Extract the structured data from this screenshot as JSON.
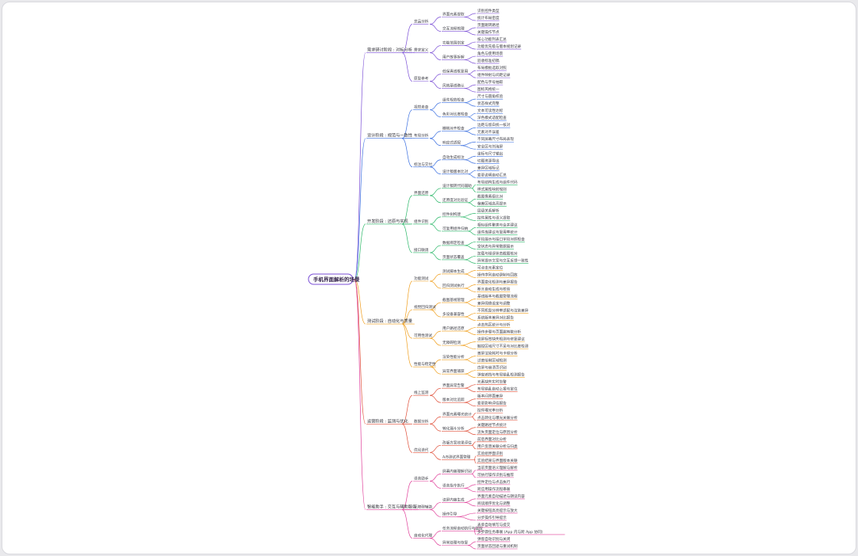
{
  "root": {
    "label": "手机界面解析的场景"
  },
  "colors": [
    "#7b4fd6",
    "#3a6fe0",
    "#2db86a",
    "#f0a020",
    "#e0503a",
    "#e0409a"
  ],
  "branches": [
    {
      "label": "需求研讨阶段 : 对标分析",
      "children": [
        {
          "label": "竞品分析",
          "children": [
            {
              "label": "界面元素提取",
              "children": [
                "识别控件类型",
                "统计布局密度"
              ]
            },
            {
              "label": "交互流程梳理",
              "children": [
                "页面跳转路径",
                "关键操作节点"
              ]
            }
          ]
        },
        {
          "label": "需求定义",
          "children": [
            {
              "label": "功能范围划定",
              "children": [
                "核心功能列表汇总",
                "功能优先级与版本规划记录"
              ]
            },
            {
              "label": "用户故事拆解",
              "children": [
                "角色与使用场景",
                "验收标准初稿"
              ]
            }
          ]
        },
        {
          "label": "原型参考",
          "children": [
            {
              "label": "低保真线框复用",
              "children": [
                "布局模板选取对照",
                "组件映射与间距记录"
              ]
            },
            {
              "label": "风格基线确认",
              "children": [
                "配色与字号抽取",
                "图标风格统一"
              ]
            }
          ]
        }
      ]
    },
    {
      "label": "设计阶段 : 规范与一致性",
      "children": [
        {
          "label": "视觉走查",
          "children": [
            {
              "label": "组件规范检查",
              "children": [
                "尺寸与圆角校验",
                "状态样式完整"
              ]
            },
            {
              "label": "色彩对比度检查",
              "children": [
                "文本可读性达标",
                "深色模式适配检查"
              ]
            }
          ]
        },
        {
          "label": "布局分析",
          "children": [
            {
              "label": "栅格对齐检查",
              "children": [
                "边距与留白统一核对",
                "元素对齐误差"
              ]
            },
            {
              "label": "响应式适配",
              "children": [
                "不同屏幕尺寸布局表现",
                "安全区与刘海屏"
              ]
            }
          ]
        },
        {
          "label": "标注与交付",
          "children": [
            {
              "label": "自动生成标注",
              "children": [
                "坐标与尺寸输出",
                "切图资源导出"
              ]
            },
            {
              "label": "设计稿版本比对",
              "children": [
                "差异区域标记",
                "变更说明自动汇总"
              ]
            }
          ]
        }
      ]
    },
    {
      "label": "开发阶段 : 还原与实现",
      "children": [
        {
          "label": "界面还原",
          "children": [
            {
              "label": "设计稿转代码辅助",
              "children": [
                "布局结构生成与组件代码",
                "样式属性映射规则"
              ]
            },
            {
              "label": "还原度对比验证",
              "children": [
                "截图像素级比对",
                "偏差区域高亮提示"
              ]
            }
          ]
        },
        {
          "label": "组件识别",
          "children": [
            {
              "label": "控件树构建",
              "children": [
                "层级关系解析",
                "控件属性与语义提取"
              ]
            },
            {
              "label": "可复用组件归纳",
              "children": [
                "相似组件聚类与合并建议",
                "组件库建议与复用率统计"
              ]
            }
          ]
        },
        {
          "label": "接口联调",
          "children": [
            {
              "label": "数据绑定检查",
              "children": [
                "字段展示与接口字段对照检查",
                "空状态与异常数据展示"
              ]
            },
            {
              "label": "页面状态覆盖",
              "children": [
                "加载与错误状态截图核对",
                "异常提示文案与交互反馈一致性"
              ]
            }
          ]
        }
      ]
    },
    {
      "label": "测试阶段 : 自动化与质量",
      "children": [
        {
          "label": "功能测试",
          "children": [
            {
              "label": "测试脚本生成",
              "children": [
                "可点击元素定位",
                "操作序列自动录制与回放"
              ]
            },
            {
              "label": "回归测试执行",
              "children": [
                "界面变化检测与差异报告",
                "断言自动生成与校验"
              ]
            }
          ]
        },
        {
          "label": "视觉回归测试",
          "children": [
            {
              "label": "截图基线管理",
              "children": [
                "基线版本与截图管理流程",
                "差异阈值设定与调整"
              ]
            },
            {
              "label": "多设备兼容性",
              "children": [
                "不同机型分辨率适配与渲染差异",
                "系统版本差异对比报告"
              ]
            }
          ]
        },
        {
          "label": "可用性测试",
          "children": [
            {
              "label": "用户路径还原",
              "children": [
                "点击热区统计与分析",
                "操作步骤与页面跳转数分析"
              ]
            },
            {
              "label": "无障碍检测",
              "children": [
                "读屏标签缺失检测与修复建议",
                "触控区域尺寸不足与对比度检测"
              ]
            }
          ]
        },
        {
          "label": "性能与稳定性",
          "children": [
            {
              "label": "渲染性能分析",
              "children": [
                "首屏渲染耗时与卡顿分析",
                "过度绘制区域检测"
              ]
            },
            {
              "label": "异常界面捕获",
              "children": [
                "白屏与崩溃页识别",
                "弹窗遮挡与布局错乱检测报告"
              ]
            }
          ]
        }
      ]
    },
    {
      "label": "运营阶段 : 监测与优化",
      "children": [
        {
          "label": "线上监测",
          "children": [
            {
              "label": "界面异常告警",
              "children": [
                "元素缺失实时告警",
                "布局错乱自动上报与定位"
              ]
            },
            {
              "label": "版本对比追踪",
              "children": [
                "版本间界面差异",
                "变更影响评估报告"
              ]
            }
          ]
        },
        {
          "label": "数据分析",
          "children": [
            {
              "label": "界面元素曝光统计",
              "children": [
                "控件曝光率分析",
                "点击转化与曝光关联分析"
              ]
            },
            {
              "label": "转化漏斗分析",
              "children": [
                "关键路径节点统计",
                "流失页面定位与原因分析"
              ]
            }
          ]
        },
        {
          "label": "优化迭代",
          "children": [
            {
              "label": "改版方案效果评估",
              "children": [
                "前后界面对比分析",
                "用户反馈关联分析与归类"
              ]
            },
            {
              "label": "A/B测试界面管理",
              "children": [
                "实验组界面识别",
                "实验结果与界面版本关联"
              ]
            }
          ]
        }
      ]
    },
    {
      "label": "智能助手 : 交互与辅助服务",
      "children": [
        {
          "label": "语音助手",
          "children": [
            {
              "label": "屏幕内容理解识别",
              "children": [
                "当前页面语义理解与解析",
                "可执行操作识别与推荐"
              ]
            },
            {
              "label": "语音指令执行",
              "children": [
                "控件定位与点击执行",
                "跨应用操作流程串联"
              ]
            }
          ]
        },
        {
          "label": "无障碍辅助",
          "children": [
            {
              "label": "读屏内容生成",
              "children": [
                "界面元素自动描述与朗读内容",
                "阅读顺序优化与调整"
              ]
            },
            {
              "label": "操作引导",
              "children": [
                "关键按钮高亮提示与放大",
                "分步操作引导提示"
              ]
            }
          ]
        },
        {
          "label": "自动化代理",
          "children": [
            {
              "label": "任务流程自动执行与监控",
              "children": [
                "表单自动填写与提交",
                "多步骤任务串联 (App 内与跨 App 协同)"
              ]
            },
            {
              "label": "异常处理与恢复",
              "children": [
                "弹窗自动识别与关闭",
                "页面状态回退与重试机制"
              ]
            }
          ]
        }
      ]
    }
  ]
}
